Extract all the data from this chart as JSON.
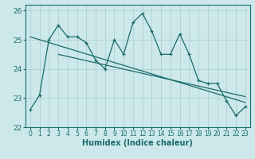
{
  "title": "",
  "xlabel": "Humidex (Indice chaleur)",
  "xlim": [
    -0.5,
    23.5
  ],
  "ylim": [
    22,
    26.2
  ],
  "yticks": [
    22,
    23,
    24,
    25,
    26
  ],
  "xticks": [
    0,
    1,
    2,
    3,
    4,
    5,
    6,
    7,
    8,
    9,
    10,
    11,
    12,
    13,
    14,
    15,
    16,
    17,
    18,
    19,
    20,
    21,
    22,
    23
  ],
  "bg_color": "#cce8ea",
  "grid_color": "#aacccc",
  "line_color": "#1a6b6b",
  "main_data": [
    22.6,
    23.1,
    25.0,
    25.5,
    25.1,
    25.1,
    24.9,
    24.3,
    24.0,
    25.0,
    24.5,
    25.6,
    25.9,
    25.3,
    24.5,
    24.5,
    25.2,
    24.5,
    23.6,
    23.5,
    23.5,
    22.9,
    22.4,
    22.7
  ],
  "trend1": [
    0,
    25.1,
    23,
    22.85
  ],
  "trend2": [
    3,
    24.5,
    23,
    23.05
  ]
}
